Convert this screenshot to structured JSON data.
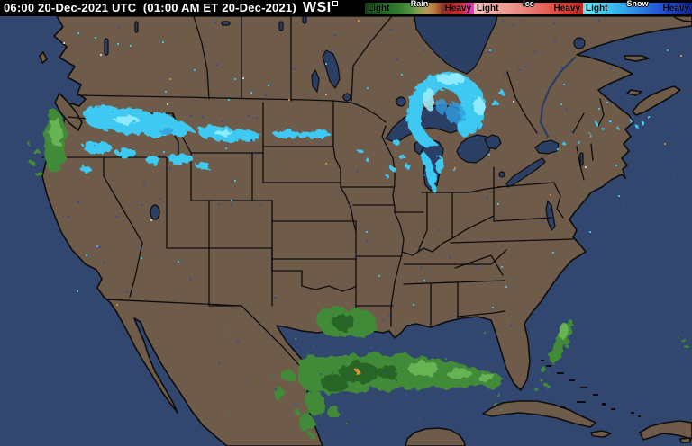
{
  "titlebar": {
    "timestamp": "06:00 20-Dec-2021 UTC  (01:00 AM ET 20-Dec-2021)",
    "logo": "WSI"
  },
  "legend": {
    "bars": [
      {
        "name": "Rain",
        "light": "Light",
        "heavy": "Heavy",
        "css": "background:linear-gradient(90deg,#123f12 0%,#1c5520 10%,#276e27 22%,#357f2e 32%,#549343 42%,#8f9c51 50%,#b8975a 57%,#b97a40 64%,#8f2d22 72%,#b52424 80%,#cd2a2a 88%,#d93390 94%,#e23cc8 100%)"
      },
      {
        "name": "Ice",
        "light": "Light",
        "heavy": "Heavy",
        "css": "background:linear-gradient(90deg,#f4bcb6 0%,#efa49e 22%,#ea867e 45%,#e35d54 68%,#da332c 85%,#c92222 100%)"
      },
      {
        "name": "Snow",
        "light": "Light",
        "heavy": "Heavy",
        "css": "background:linear-gradient(90deg,#62ecf8 0%,#41cdf2 18%,#2fa6ea 38%,#2a7ae0 55%,#2150d2 72%,#1834b4 86%,#101f8e 100%)"
      }
    ]
  },
  "colors": {
    "topbar_bg": "#000000",
    "topbar_text": "#ffffff",
    "ocean": "#32476f",
    "lake": "#2b3e63",
    "land": "#6f5b4a",
    "border": "#0d0d0d",
    "snow": "#3cc9f2",
    "snow_light": "#9ff0ff",
    "snow_deep": "#2f9fe0",
    "rain": "#3f8a38",
    "rain_light": "#74c25c",
    "rain_dark": "#255f22",
    "rain_extreme": "#e0922e",
    "noise": "#2e4f9e",
    "noise_white": "#cdd6e6"
  }
}
